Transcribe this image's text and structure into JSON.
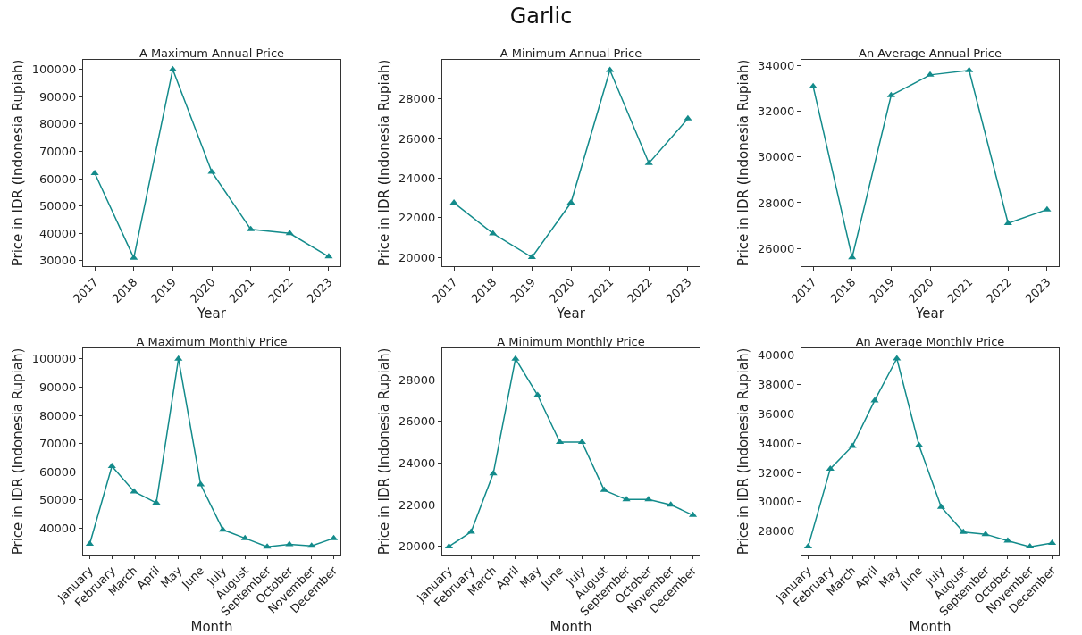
{
  "chart_data": [
    {
      "type": "line",
      "title": "A Maximum Annual Price",
      "annotations": [
        "Garlic"
      ],
      "xlabel": "Year",
      "ylabel": "Price in IDR (Indonesia Rupiah)",
      "categories": [
        "2017",
        "2018",
        "2019",
        "2020",
        "2021",
        "2022",
        "2023"
      ],
      "series": [
        {
          "color": "#138b8b",
          "values": [
            62000,
            31000,
            100000,
            62500,
            41500,
            40000,
            31500
          ]
        }
      ],
      "ylim": [
        28000,
        103500
      ],
      "yticks": [
        30000,
        40000,
        50000,
        60000,
        70000,
        80000,
        90000,
        100000
      ],
      "marker": "triangle",
      "line_style": "solid"
    },
    {
      "type": "line",
      "title": "A Minimum Annual Price",
      "xlabel": "Year",
      "ylabel": "Price in IDR (Indonesia Rupiah)",
      "categories": [
        "2017",
        "2018",
        "2019",
        "2020",
        "2021",
        "2022",
        "2023"
      ],
      "series": [
        {
          "color": "#138b8b",
          "values": [
            22750,
            21200,
            20000,
            22750,
            29450,
            24750,
            27000
          ]
        }
      ],
      "ylim": [
        19550,
        29970
      ],
      "yticks": [
        20000,
        22000,
        24000,
        26000,
        28000
      ],
      "marker": "triangle",
      "line_style": "solid"
    },
    {
      "type": "line",
      "title": "An Average Annual Price",
      "xlabel": "Year",
      "ylabel": "Price in IDR (Indonesia Rupiah)",
      "categories": [
        "2017",
        "2018",
        "2019",
        "2020",
        "2021",
        "2022",
        "2023"
      ],
      "series": [
        {
          "color": "#138b8b",
          "values": [
            33100,
            25600,
            32700,
            33600,
            33800,
            27100,
            27700
          ]
        }
      ],
      "ylim": [
        25220,
        34260
      ],
      "yticks": [
        26000,
        28000,
        30000,
        32000,
        34000
      ],
      "marker": "triangle",
      "line_style": "solid"
    },
    {
      "type": "line",
      "title": "A Maximum Monthly Price",
      "xlabel": "Month",
      "ylabel": "Price in IDR (Indonesia Rupiah)",
      "categories": [
        "January",
        "February",
        "March",
        "April",
        "May",
        "June",
        "July",
        "August",
        "September",
        "October",
        "November",
        "December"
      ],
      "series": [
        {
          "color": "#138b8b",
          "values": [
            34500,
            62000,
            53000,
            49000,
            100000,
            55500,
            39500,
            36500,
            33500,
            34300,
            33800,
            36500
          ]
        }
      ],
      "ylim": [
        30700,
        103700
      ],
      "yticks": [
        40000,
        50000,
        60000,
        70000,
        80000,
        90000,
        100000
      ],
      "marker": "triangle",
      "line_style": "solid"
    },
    {
      "type": "line",
      "title": "A Minimum Monthly Price",
      "xlabel": "Month",
      "ylabel": "Price in IDR (Indonesia Rupiah)",
      "categories": [
        "January",
        "February",
        "March",
        "April",
        "May",
        "June",
        "July",
        "August",
        "September",
        "October",
        "November",
        "December"
      ],
      "series": [
        {
          "color": "#138b8b",
          "values": [
            20000,
            20700,
            23500,
            29000,
            27250,
            25000,
            25000,
            22700,
            22250,
            22250,
            22000,
            21500
          ]
        }
      ],
      "ylim": [
        19610,
        29500
      ],
      "yticks": [
        20000,
        22000,
        24000,
        26000,
        28000
      ],
      "marker": "triangle",
      "line_style": "solid"
    },
    {
      "type": "line",
      "title": "An Average Monthly Price",
      "xlabel": "Month",
      "ylabel": "Price in IDR (Indonesia Rupiah)",
      "categories": [
        "January",
        "February",
        "March",
        "April",
        "May",
        "June",
        "July",
        "August",
        "September",
        "October",
        "November",
        "December"
      ],
      "series": [
        {
          "color": "#138b8b",
          "values": [
            26950,
            32250,
            33800,
            36900,
            39750,
            33850,
            29650,
            27950,
            27800,
            27350,
            26950,
            27200
          ]
        }
      ],
      "ylim": [
        26410,
        40450
      ],
      "yticks": [
        28000,
        30000,
        32000,
        34000,
        36000,
        38000,
        40000
      ],
      "marker": "triangle",
      "line_style": "solid"
    }
  ]
}
